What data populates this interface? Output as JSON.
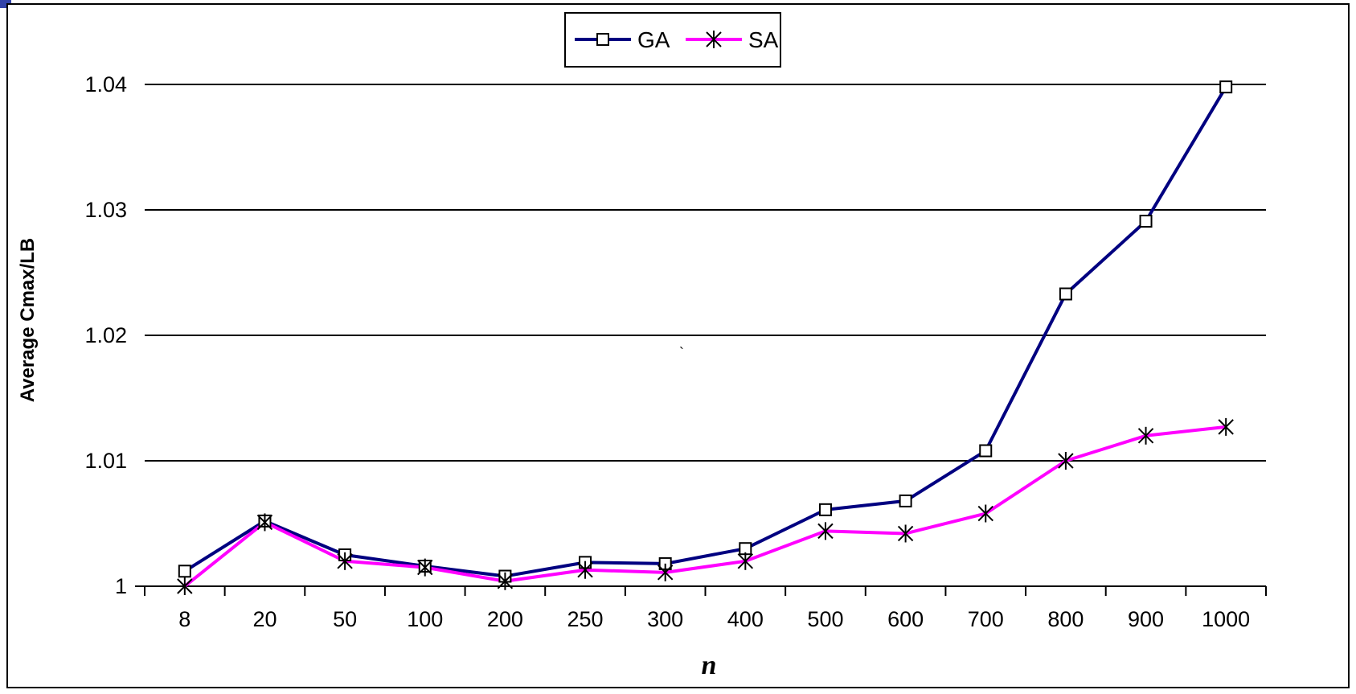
{
  "chart_data": {
    "type": "line",
    "title": "",
    "xlabel": "n",
    "ylabel": "Average Cmax/LB",
    "categories": [
      "8",
      "20",
      "50",
      "100",
      "200",
      "250",
      "300",
      "400",
      "500",
      "600",
      "700",
      "800",
      "900",
      "1000"
    ],
    "ylim": [
      1,
      1.04
    ],
    "yticks": [
      "1",
      "1.01",
      "1.02",
      "1.03",
      "1.04"
    ],
    "grid": true,
    "legend_position": "top-center",
    "annotation": "`",
    "series": [
      {
        "name": "GA",
        "color": "#000080",
        "marker": "square",
        "values": [
          1.0012,
          1.0052,
          1.0025,
          1.0016,
          1.0008,
          1.0019,
          1.0018,
          1.003,
          1.0061,
          1.0068,
          1.0108,
          1.0233,
          1.0291,
          1.0398
        ]
      },
      {
        "name": "SA",
        "color": "#FF00FF",
        "marker": "asterisk",
        "values": [
          1.0,
          1.0051,
          1.002,
          1.0015,
          1.0004,
          1.0013,
          1.0011,
          1.002,
          1.0044,
          1.0042,
          1.0058,
          1.01,
          1.012,
          1.0127
        ]
      }
    ]
  }
}
